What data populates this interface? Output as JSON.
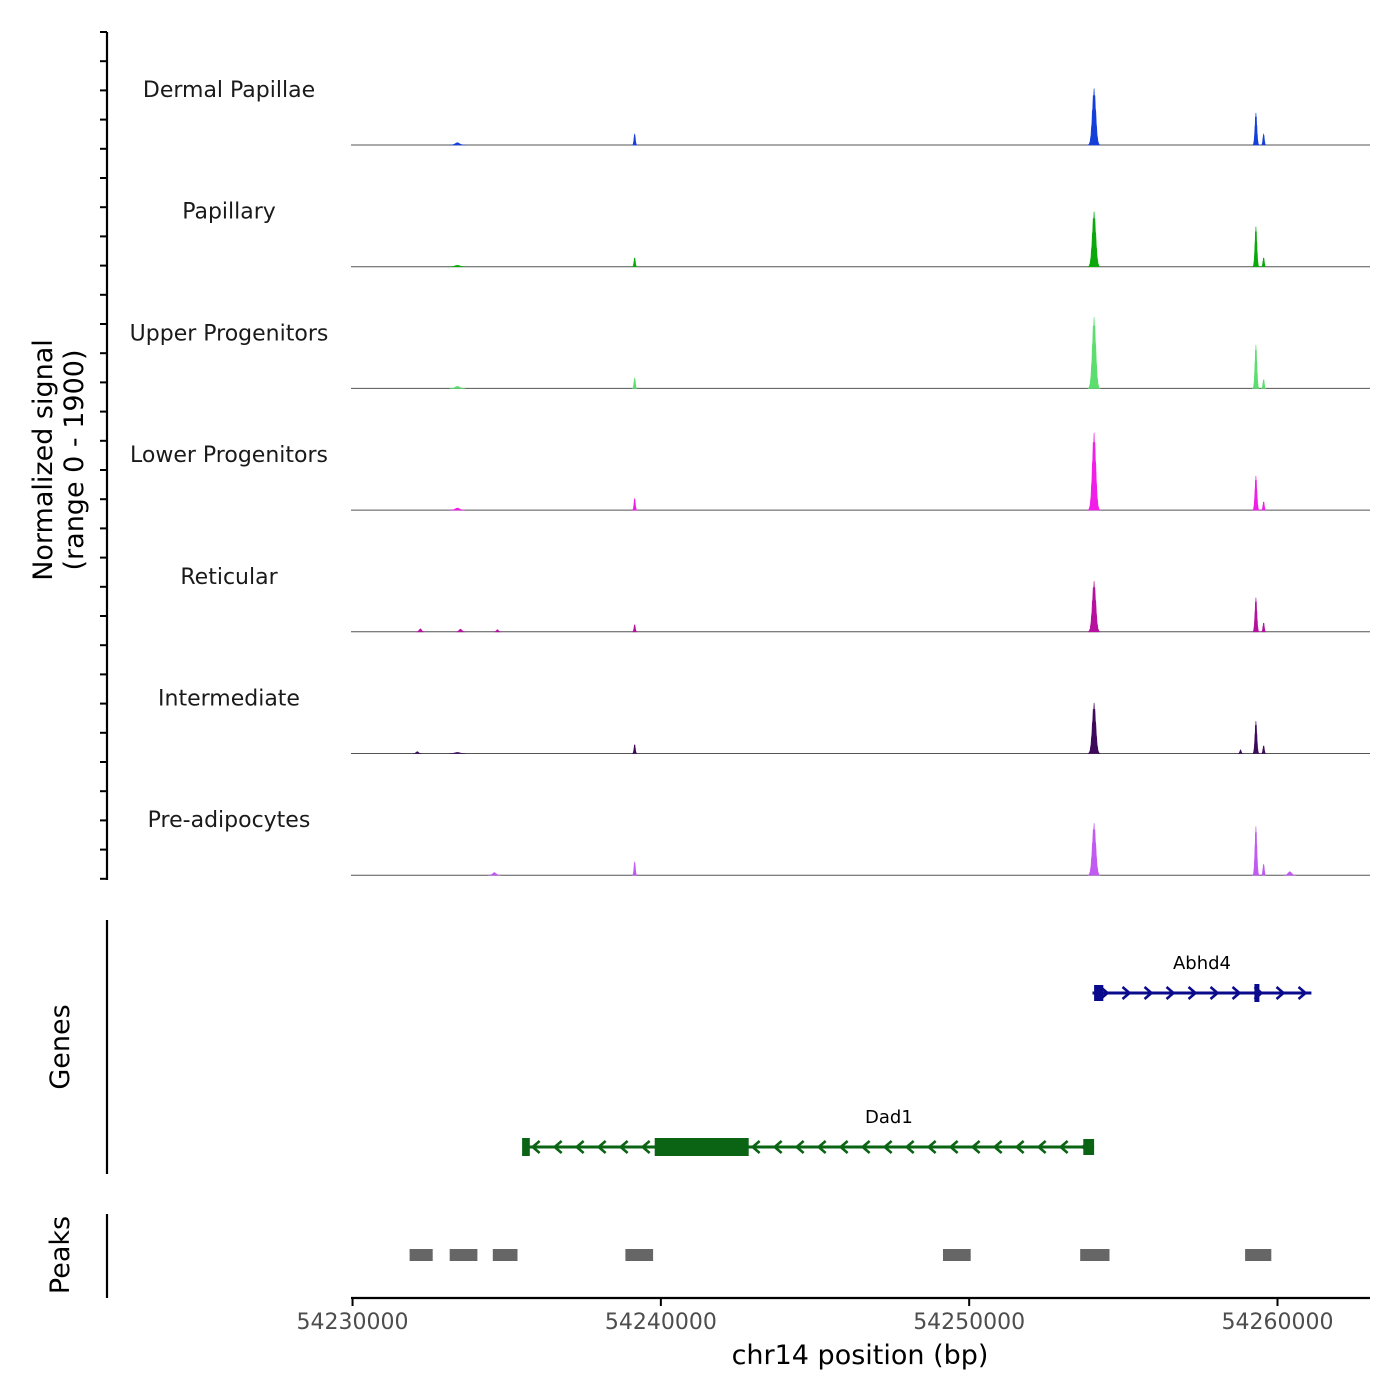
{
  "chart_data": {
    "type": "area",
    "chromosome": "chr14",
    "x_range": [
      54229950,
      54263000
    ],
    "signal_ylim": [
      0,
      1900
    ],
    "y_axis_title": [
      "Normalized signal",
      "(range 0 - 1900)"
    ],
    "x_axis_title": "chr14 position (bp)",
    "x_ticks": [
      54230000,
      54240000,
      54250000,
      54260000
    ],
    "x_tick_labels": [
      "54230000",
      "54240000",
      "54250000",
      "54260000"
    ],
    "tracks": [
      {
        "name": "Dermal Papillae",
        "color": "#1440d9",
        "peaks": [
          {
            "x": 54254050,
            "h": 1900,
            "w": 200
          },
          {
            "x": 54259300,
            "h": 1080,
            "w": 110
          },
          {
            "x": 54239150,
            "h": 380,
            "w": 80
          },
          {
            "x": 54259550,
            "h": 380,
            "w": 80
          },
          {
            "x": 54233400,
            "h": 80,
            "w": 260
          }
        ]
      },
      {
        "name": "Papillary",
        "color": "#0aa80a",
        "peaks": [
          {
            "x": 54254050,
            "h": 1850,
            "w": 200
          },
          {
            "x": 54259300,
            "h": 1350,
            "w": 110
          },
          {
            "x": 54239150,
            "h": 300,
            "w": 80
          },
          {
            "x": 54259550,
            "h": 300,
            "w": 80
          },
          {
            "x": 54233400,
            "h": 50,
            "w": 260
          }
        ]
      },
      {
        "name": "Upper Progenitors",
        "color": "#5cde6e",
        "peaks": [
          {
            "x": 54254050,
            "h": 2400,
            "w": 200
          },
          {
            "x": 54259300,
            "h": 1470,
            "w": 110
          },
          {
            "x": 54239150,
            "h": 360,
            "w": 80
          },
          {
            "x": 54259550,
            "h": 300,
            "w": 80
          },
          {
            "x": 54233400,
            "h": 70,
            "w": 260
          }
        ]
      },
      {
        "name": "Lower Progenitors",
        "color": "#f01ee8",
        "peaks": [
          {
            "x": 54254050,
            "h": 2600,
            "w": 200
          },
          {
            "x": 54259300,
            "h": 1150,
            "w": 110
          },
          {
            "x": 54239150,
            "h": 400,
            "w": 80
          },
          {
            "x": 54259550,
            "h": 280,
            "w": 80
          },
          {
            "x": 54233400,
            "h": 70,
            "w": 260
          }
        ]
      },
      {
        "name": "Reticular",
        "color": "#b5119e",
        "peaks": [
          {
            "x": 54254050,
            "h": 1700,
            "w": 200
          },
          {
            "x": 54259300,
            "h": 1150,
            "w": 110
          },
          {
            "x": 54239150,
            "h": 240,
            "w": 80
          },
          {
            "x": 54259550,
            "h": 300,
            "w": 80
          },
          {
            "x": 54232200,
            "h": 100,
            "w": 140
          },
          {
            "x": 54233500,
            "h": 90,
            "w": 160
          },
          {
            "x": 54234700,
            "h": 70,
            "w": 120
          }
        ]
      },
      {
        "name": "Intermediate",
        "color": "#3d0a5c",
        "peaks": [
          {
            "x": 54254050,
            "h": 1700,
            "w": 200
          },
          {
            "x": 54259300,
            "h": 1090,
            "w": 110
          },
          {
            "x": 54239150,
            "h": 300,
            "w": 80
          },
          {
            "x": 54259550,
            "h": 260,
            "w": 80
          },
          {
            "x": 54258800,
            "h": 120,
            "w": 80
          },
          {
            "x": 54232100,
            "h": 60,
            "w": 140
          },
          {
            "x": 54233400,
            "h": 40,
            "w": 260
          }
        ]
      },
      {
        "name": "Pre-adipocytes",
        "color": "#c05af0",
        "peaks": [
          {
            "x": 54254050,
            "h": 1750,
            "w": 200
          },
          {
            "x": 54259300,
            "h": 1640,
            "w": 110
          },
          {
            "x": 54239150,
            "h": 460,
            "w": 80
          },
          {
            "x": 54259550,
            "h": 380,
            "w": 80
          },
          {
            "x": 54234600,
            "h": 90,
            "w": 200
          },
          {
            "x": 54260400,
            "h": 120,
            "w": 200
          }
        ]
      }
    ],
    "genes_axis_title": "Genes",
    "genes": [
      {
        "name": "Abhd4",
        "color": "#0a0a8c",
        "strand": "+",
        "start": 54254000,
        "end": 54261100,
        "exons": [
          [
            54254050,
            54254350
          ],
          [
            54259250,
            54259320
          ]
        ],
        "row": 0
      },
      {
        "name": "Dad1",
        "color": "#0a6414",
        "strand": "-",
        "start": 54235550,
        "end": 54254050,
        "exons": [
          [
            54235500,
            54235750
          ],
          [
            54239800,
            54242850
          ],
          [
            54253700,
            54254050
          ]
        ],
        "row": 1
      }
    ],
    "peaks_axis_title": "Peaks",
    "peak_regions": [
      [
        54231850,
        54232600
      ],
      [
        54233150,
        54234050
      ],
      [
        54234550,
        54235350
      ],
      [
        54238850,
        54239750
      ],
      [
        54249150,
        54250050
      ],
      [
        54253600,
        54254550
      ],
      [
        54258950,
        54259800
      ]
    ],
    "peak_color": "#666666"
  }
}
